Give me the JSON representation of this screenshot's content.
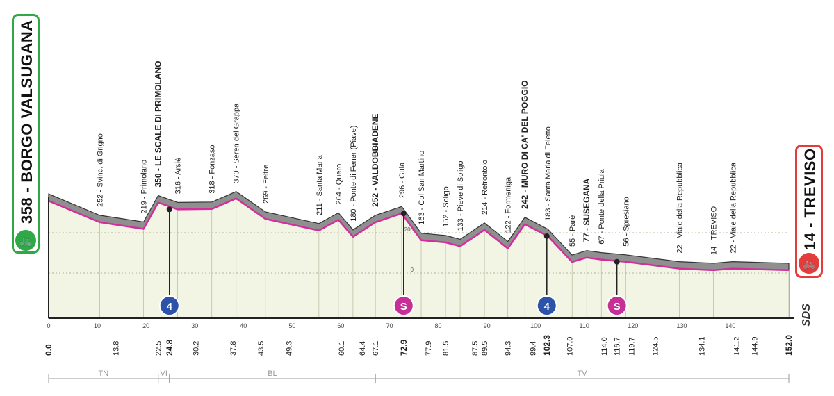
{
  "stage": {
    "start_label": "358 - BORGO VALSUGANA",
    "finish_label": "14 - TREVISO",
    "brand_mark": "SDS",
    "start_icon": "cyclist-icon",
    "finish_icon": "cyclist-icon"
  },
  "colors": {
    "profile_fill": "#f2f5e4",
    "relief_fill": "#8f8f8f",
    "road_line": "#d22e9c",
    "start_accent": "#2fa846",
    "finish_accent": "#e43b3b",
    "climb_badge": "#2c53a8",
    "sprint_badge": "#c52f96"
  },
  "chart_data": {
    "type": "area",
    "title": "",
    "xlabel": "",
    "ylabel": "",
    "xlim": [
      0,
      152
    ],
    "ylim": [
      0,
      420
    ],
    "y_ticks": [
      0,
      200
    ],
    "x_ticks": [
      0,
      10,
      20,
      30,
      40,
      50,
      60,
      70,
      80,
      90,
      100,
      110,
      120,
      130,
      140
    ],
    "km_marks": [
      "0.0",
      "13.8",
      "22.5",
      "24.8",
      "30.2",
      "37.8",
      "43.5",
      "49.3",
      "60.1",
      "64.4",
      "67.1",
      "72.9",
      "77.9",
      "81.5",
      "87.5",
      "89.5",
      "94.3",
      "99.4",
      "102.3",
      "107.0",
      "114.0",
      "116.7",
      "119.7",
      "124.5",
      "134.1",
      "141.2",
      "144.9",
      "152.0"
    ],
    "bold_km": [
      "0.0",
      "24.8",
      "72.9",
      "102.3",
      "152.0"
    ],
    "waypoints": [
      {
        "km": 0.0,
        "alt": 358,
        "label": "358 - BORGO VALSUGANA",
        "bold": true
      },
      {
        "km": 10.5,
        "alt": 252,
        "label": "252 - Svinc. di Grigno"
      },
      {
        "km": 19.5,
        "alt": 219,
        "label": "219 - Primolano"
      },
      {
        "km": 22.5,
        "alt": 350,
        "label": "350 - LE SCALE DI PRIMOLANO",
        "bold": true
      },
      {
        "km": 26.5,
        "alt": 316,
        "label": "316 - Arsiè"
      },
      {
        "km": 33.5,
        "alt": 318,
        "label": "318 - Fonzaso"
      },
      {
        "km": 38.5,
        "alt": 370,
        "label": "370 - Seren del Grappa"
      },
      {
        "km": 44.5,
        "alt": 269,
        "label": "269 - Feltre"
      },
      {
        "km": 55.5,
        "alt": 211,
        "label": "211 - Santa Maria"
      },
      {
        "km": 59.5,
        "alt": 264,
        "label": "264 - Quero"
      },
      {
        "km": 62.5,
        "alt": 180,
        "label": "180 - Ponte di Fener (Piave)"
      },
      {
        "km": 67.1,
        "alt": 252,
        "label": "252 - VALDOBBIADENE",
        "bold": true
      },
      {
        "km": 72.5,
        "alt": 296,
        "label": "296 - Guia"
      },
      {
        "km": 76.5,
        "alt": 163,
        "label": "163 - Col San Martino"
      },
      {
        "km": 81.5,
        "alt": 152,
        "label": "152 - Soligo"
      },
      {
        "km": 84.5,
        "alt": 133,
        "label": "133 - Pieve di Soligo"
      },
      {
        "km": 89.5,
        "alt": 214,
        "label": "214 - Refrontolo"
      },
      {
        "km": 94.3,
        "alt": 122,
        "label": "122 - Formeniga"
      },
      {
        "km": 97.8,
        "alt": 242,
        "label": "242 - MURO DI CA' DEL POGGIO",
        "bold": true
      },
      {
        "km": 102.5,
        "alt": 183,
        "label": "183 - Santa Maria di Feletto"
      },
      {
        "km": 107.5,
        "alt": 55,
        "label": "55 - Parè"
      },
      {
        "km": 110.5,
        "alt": 77,
        "label": "77 - SUSEGANA",
        "bold": true
      },
      {
        "km": 113.5,
        "alt": 67,
        "label": "67 - Ponte della Priula"
      },
      {
        "km": 118.5,
        "alt": 56,
        "label": "56 - Spresiano"
      },
      {
        "km": 129.5,
        "alt": 22,
        "label": "22 - Viale della Repubblica"
      },
      {
        "km": 136.5,
        "alt": 14,
        "label": "14 - TREVISO"
      },
      {
        "km": 140.5,
        "alt": 22,
        "label": "22 - Viale della Repubblica"
      },
      {
        "km": 152.0,
        "alt": 14,
        "label": "14 - TREVISO",
        "bold": true
      }
    ],
    "badges": [
      {
        "km": 24.8,
        "type": "climb",
        "label": "4"
      },
      {
        "km": 72.9,
        "type": "sprint",
        "label": "S"
      },
      {
        "km": 102.3,
        "type": "climb",
        "label": "4"
      },
      {
        "km": 116.7,
        "type": "sprint",
        "label": "S"
      }
    ],
    "regions": [
      {
        "label": "TN",
        "from": 0.0,
        "to": 22.5
      },
      {
        "label": "VI",
        "from": 22.5,
        "to": 24.8
      },
      {
        "label": "BL",
        "from": 24.8,
        "to": 67.1
      },
      {
        "label": "TV",
        "from": 67.1,
        "to": 152.0
      }
    ]
  }
}
